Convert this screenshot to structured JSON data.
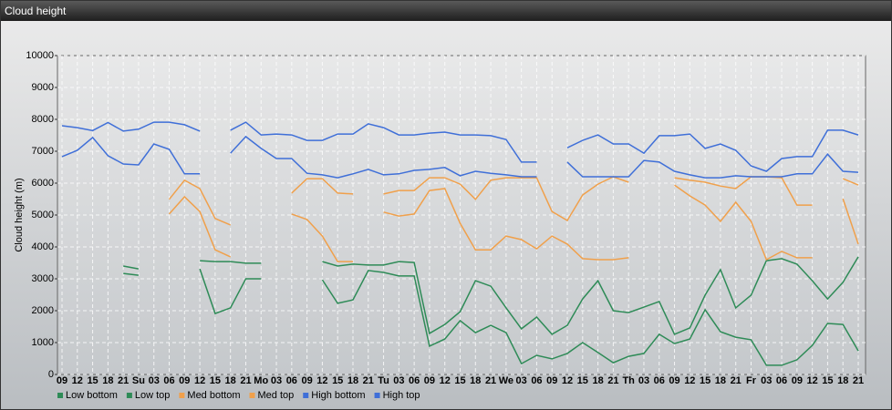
{
  "chart_data": {
    "type": "line",
    "title": "Cloud height",
    "y_label": "Cloud height (m)",
    "categories": [
      "09",
      "12",
      "15",
      "18",
      "21",
      "Su",
      "03",
      "06",
      "09",
      "12",
      "15",
      "18",
      "21",
      "Mo",
      "03",
      "06",
      "09",
      "12",
      "15",
      "18",
      "21",
      "Tu",
      "03",
      "06",
      "09",
      "12",
      "15",
      "18",
      "21",
      "We",
      "03",
      "06",
      "09",
      "12",
      "15",
      "18",
      "21",
      "Th",
      "03",
      "06",
      "09",
      "12",
      "15",
      "18",
      "21",
      "Fr",
      "03",
      "06",
      "09",
      "12",
      "15",
      "18",
      "21"
    ],
    "ylim": [
      0,
      10000
    ],
    "yticks": [
      0,
      1000,
      2000,
      3000,
      4000,
      5000,
      6000,
      7000,
      8000,
      9000,
      10000
    ],
    "grid": true,
    "legend": "bottom",
    "series": [
      {
        "name": "Low bottom",
        "color": "#2e8b57",
        "values": [
          null,
          null,
          null,
          null,
          3170,
          3110,
          null,
          null,
          null,
          3310,
          1910,
          2090,
          3000,
          3000,
          null,
          null,
          null,
          2970,
          2230,
          2340,
          3260,
          3200,
          3090,
          3090,
          890,
          1110,
          1690,
          1310,
          1540,
          1310,
          340,
          600,
          490,
          660,
          1000,
          690,
          370,
          570,
          660,
          1260,
          970,
          1110,
          2030,
          1340,
          1170,
          1090,
          290,
          290,
          460,
          910,
          1600,
          1570,
          740
        ]
      },
      {
        "name": "Low top",
        "color": "#2e8b57",
        "values": [
          null,
          null,
          null,
          null,
          3400,
          3310,
          null,
          null,
          null,
          3570,
          3540,
          3540,
          3490,
          3490,
          null,
          null,
          null,
          3540,
          3400,
          3460,
          3430,
          3430,
          3540,
          3510,
          1290,
          1570,
          1970,
          2940,
          2770,
          2090,
          1430,
          1800,
          1260,
          1540,
          2370,
          2940,
          2000,
          1940,
          2110,
          2290,
          1260,
          1460,
          2490,
          3290,
          2090,
          2490,
          3570,
          3630,
          3460,
          2940,
          2370,
          2890,
          3690
        ]
      },
      {
        "name": "Med bottom",
        "color": "#f0a04b",
        "values": [
          null,
          null,
          null,
          null,
          null,
          null,
          null,
          5030,
          5570,
          5110,
          3910,
          3690,
          null,
          null,
          null,
          5030,
          4860,
          4340,
          3540,
          3540,
          null,
          5090,
          4970,
          5030,
          5770,
          5830,
          4740,
          3910,
          3910,
          4340,
          4230,
          3940,
          4340,
          4090,
          3630,
          3600,
          3600,
          3660,
          null,
          null,
          5940,
          5600,
          5310,
          4800,
          5400,
          4800,
          3600,
          3860,
          3660,
          3660,
          null,
          5510,
          4090
        ]
      },
      {
        "name": "Med top",
        "color": "#f0a04b",
        "values": [
          null,
          null,
          null,
          null,
          null,
          null,
          null,
          5490,
          6090,
          5830,
          4890,
          4690,
          null,
          null,
          null,
          5690,
          6140,
          6140,
          5690,
          5660,
          null,
          5660,
          5770,
          5770,
          6170,
          6170,
          5970,
          5490,
          6090,
          6170,
          6170,
          6170,
          5110,
          4830,
          5630,
          5970,
          6200,
          6030,
          null,
          null,
          6170,
          6090,
          6030,
          5910,
          5830,
          6200,
          6200,
          6170,
          5310,
          5310,
          null,
          6140,
          5940
        ]
      },
      {
        "name": "High bottom",
        "color": "#3f6fd8",
        "values": [
          6830,
          7030,
          7430,
          6860,
          6600,
          6570,
          7230,
          7060,
          6290,
          6290,
          null,
          6940,
          7460,
          7090,
          6770,
          6770,
          6310,
          6260,
          6170,
          6290,
          6430,
          6260,
          6290,
          6400,
          6430,
          6490,
          6230,
          6370,
          6310,
          6260,
          6200,
          6200,
          null,
          6660,
          6200,
          6200,
          6200,
          6200,
          6710,
          6660,
          6370,
          6260,
          6170,
          6170,
          6230,
          6200,
          6200,
          6200,
          6290,
          6290,
          6910,
          6370,
          6340
        ]
      },
      {
        "name": "High top",
        "color": "#3f6fd8",
        "values": [
          7800,
          7740,
          7650,
          7900,
          7630,
          7690,
          7910,
          7910,
          7830,
          7630,
          null,
          7660,
          7910,
          7510,
          7540,
          7510,
          7340,
          7340,
          7540,
          7540,
          7860,
          7740,
          7510,
          7510,
          7570,
          7600,
          7510,
          7510,
          7490,
          7370,
          6660,
          6660,
          null,
          7110,
          7340,
          7510,
          7230,
          7230,
          6940,
          7490,
          7490,
          7540,
          7090,
          7230,
          7030,
          6540,
          6370,
          6770,
          6830,
          6830,
          7660,
          7660,
          7510
        ]
      }
    ]
  }
}
